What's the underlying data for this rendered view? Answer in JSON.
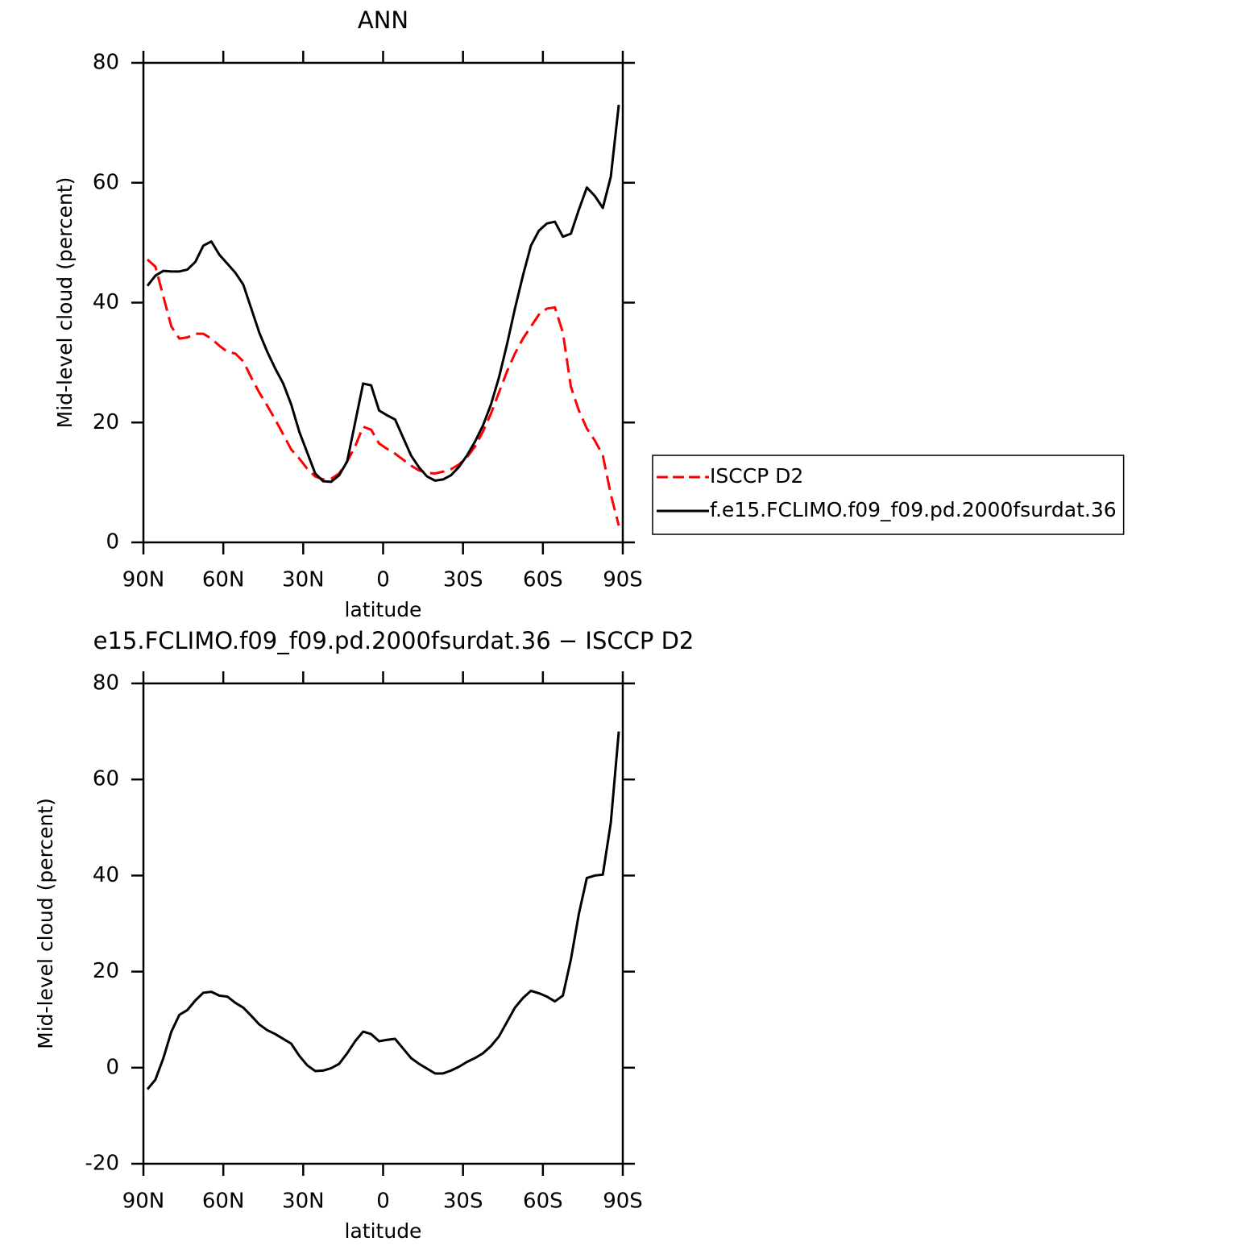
{
  "chart_data": [
    {
      "type": "line",
      "title": "ANN",
      "xlabel": "latitude",
      "ylabel": "Mid-level cloud (percent)",
      "x": [
        88.5,
        85.5,
        82.5,
        79.5,
        76.5,
        73.5,
        70.5,
        67.5,
        64.5,
        61.5,
        58.5,
        55.5,
        52.5,
        49.5,
        46.5,
        43.5,
        40.5,
        37.5,
        34.5,
        31.5,
        28.5,
        25.5,
        22.5,
        19.5,
        16.5,
        13.5,
        10.5,
        7.5,
        4.5,
        1.5,
        -1.5,
        -4.5,
        -7.5,
        -10.5,
        -13.5,
        -16.5,
        -19.5,
        -22.5,
        -25.5,
        -28.5,
        -31.5,
        -34.5,
        -37.5,
        -40.5,
        -43.5,
        -46.5,
        -49.5,
        -52.5,
        -55.5,
        -58.5,
        -61.5,
        -64.5,
        -67.5,
        -70.5,
        -73.5,
        -76.5,
        -79.5,
        -82.5,
        -85.5,
        -88.5
      ],
      "series": [
        {
          "name": "ISCCP D2",
          "color": "#ff0000",
          "dash": true,
          "values": [
            47.2,
            46,
            41,
            36,
            34,
            34.2,
            34.8,
            34.8,
            34,
            32.8,
            31.8,
            31.5,
            30.2,
            27.5,
            25,
            22.8,
            20.5,
            18,
            15.5,
            14,
            12.3,
            11,
            10.5,
            10.6,
            11.5,
            13.5,
            16,
            19.3,
            18.8,
            16.5,
            15.6,
            14.8,
            13.8,
            12.8,
            12,
            11.6,
            11.5,
            11.8,
            12.2,
            13,
            14.2,
            16,
            18.5,
            21.5,
            25,
            28.5,
            31.5,
            34,
            36,
            38,
            39,
            39.2,
            35,
            26,
            22,
            19,
            17,
            14.5,
            8,
            2.8
          ]
        },
        {
          "name": "f.e15.FCLIMO.f09_f09.pd.2000fsurdat.36",
          "color": "#000000",
          "dash": false,
          "values": [
            42.8,
            44.5,
            45.3,
            45.2,
            45.2,
            45.5,
            46.8,
            49.5,
            50.2,
            48,
            46.5,
            45,
            43,
            39,
            35,
            31.8,
            29,
            26.5,
            23,
            18.5,
            15,
            11.5,
            10.2,
            10.1,
            11.2,
            13.5,
            20,
            26.5,
            26.2,
            22,
            21.2,
            20.5,
            17.5,
            14.5,
            12.5,
            11,
            10.3,
            10.5,
            11.2,
            12.6,
            14.5,
            16.8,
            19.5,
            23,
            27.5,
            33,
            39,
            44.5,
            49.5,
            52,
            53.2,
            53.5,
            51,
            51.5,
            55.5,
            59.2,
            57.8,
            55.8,
            61,
            73
          ]
        }
      ],
      "xlim": [
        90,
        -90
      ],
      "xticks": [
        {
          "value": 90,
          "label": "90N"
        },
        {
          "value": 60,
          "label": "60N"
        },
        {
          "value": 30,
          "label": "30N"
        },
        0,
        {
          "value": -30,
          "label": "30S"
        },
        {
          "value": -60,
          "label": "60S"
        },
        {
          "value": -90,
          "label": "90S"
        }
      ],
      "ylim": [
        0,
        80
      ],
      "yticks": [
        0,
        20,
        40,
        60,
        80
      ],
      "legend": "right"
    },
    {
      "type": "line",
      "title": "e15.FCLIMO.f09_f09.pd.2000fsurdat.36 − ISCCP D2",
      "xlabel": "latitude",
      "ylabel": "Mid-level cloud (percent)",
      "x": [
        88.5,
        85.5,
        82.5,
        79.5,
        76.5,
        73.5,
        70.5,
        67.5,
        64.5,
        61.5,
        58.5,
        55.5,
        52.5,
        49.5,
        46.5,
        43.5,
        40.5,
        37.5,
        34.5,
        31.5,
        28.5,
        25.5,
        22.5,
        19.5,
        16.5,
        13.5,
        10.5,
        7.5,
        4.5,
        1.5,
        -1.5,
        -4.5,
        -7.5,
        -10.5,
        -13.5,
        -16.5,
        -19.5,
        -22.5,
        -25.5,
        -28.5,
        -31.5,
        -34.5,
        -37.5,
        -40.5,
        -43.5,
        -46.5,
        -49.5,
        -52.5,
        -55.5,
        -58.5,
        -61.5,
        -64.5,
        -67.5,
        -70.5,
        -73.5,
        -76.5,
        -79.5,
        -82.5,
        -85.5,
        -88.5
      ],
      "values": [
        -4.5,
        -2.5,
        2,
        7.5,
        11,
        12,
        14,
        15.6,
        15.8,
        15,
        14.8,
        13.5,
        12.5,
        10.8,
        9,
        7.8,
        7,
        6,
        5,
        2.5,
        0.5,
        -0.7,
        -0.6,
        -0.1,
        0.8,
        3,
        5.5,
        7.5,
        7,
        5.5,
        5.8,
        6,
        4,
        2,
        0.8,
        -0.2,
        -1.2,
        -1.2,
        -0.6,
        0.2,
        1.2,
        2,
        3,
        4.5,
        6.5,
        9.5,
        12.5,
        14.5,
        16,
        15.5,
        14.8,
        13.8,
        15,
        22.5,
        32,
        39.5,
        40,
        40.2,
        51,
        70
      ],
      "color": "#000000",
      "xlim": [
        90,
        -90
      ],
      "xticks": [
        {
          "value": 90,
          "label": "90N"
        },
        {
          "value": 60,
          "label": "60N"
        },
        {
          "value": 30,
          "label": "30N"
        },
        0,
        {
          "value": -30,
          "label": "30S"
        },
        {
          "value": -60,
          "label": "60S"
        },
        {
          "value": -90,
          "label": "90S"
        }
      ],
      "ylim": [
        -20,
        80
      ],
      "yticks": [
        -20,
        0,
        20,
        40,
        60,
        80
      ]
    }
  ]
}
